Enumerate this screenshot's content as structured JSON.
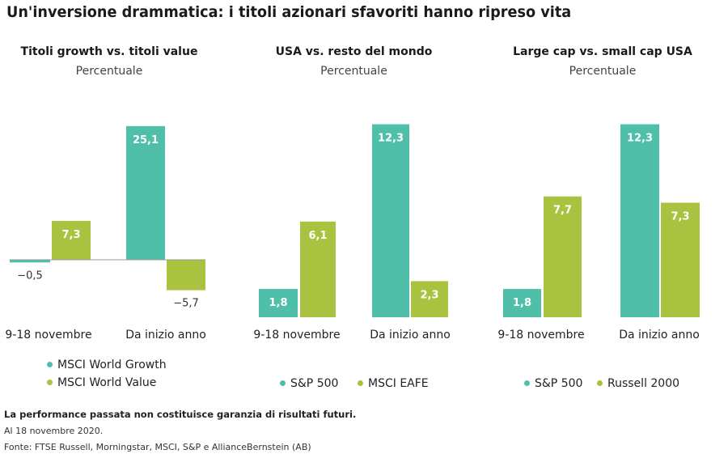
{
  "title": "Un'inversione drammatica: i titoli azionari sfavoriti hanno ripreso vita",
  "colors": {
    "teal": "#4fbfaa",
    "green": "#a9c23f",
    "axis": "#999999"
  },
  "chart_data": [
    {
      "type": "bar",
      "title": "Titoli growth vs. titoli value",
      "subtitle": "Percentuale",
      "categories": [
        "9-18 novembre",
        "Da inizio anno"
      ],
      "series": [
        {
          "name": "MSCI World Growth",
          "values": [
            -0.5,
            25.1
          ],
          "labels": [
            "−0,5",
            "25,1"
          ]
        },
        {
          "name": "MSCI World Value",
          "values": [
            7.3,
            -5.7
          ],
          "labels": [
            "7,3",
            "−5,7"
          ]
        }
      ],
      "ylim": [
        -8.5,
        27.5
      ],
      "legend": "bottom-stacked"
    },
    {
      "type": "bar",
      "title": "USA vs. resto del mondo",
      "subtitle": "Percentuale",
      "categories": [
        "9-18 novembre",
        "Da inizio anno"
      ],
      "series": [
        {
          "name": "S&P 500",
          "values": [
            1.8,
            12.3
          ],
          "labels": [
            "1,8",
            "12,3"
          ]
        },
        {
          "name": "MSCI EAFE",
          "values": [
            6.1,
            2.3
          ],
          "labels": [
            "6,1",
            "2,3"
          ]
        }
      ],
      "ylim": [
        0,
        13
      ],
      "legend": "bottom-inline"
    },
    {
      "type": "bar",
      "title": "Large cap vs. small cap USA",
      "subtitle": "Percentuale",
      "categories": [
        "9-18 novembre",
        "Da inizio anno"
      ],
      "series": [
        {
          "name": "S&P 500",
          "values": [
            1.8,
            12.3
          ],
          "labels": [
            "1,8",
            "12,3"
          ]
        },
        {
          "name": "Russell 2000",
          "values": [
            7.7,
            7.3
          ],
          "labels": [
            "7,7",
            "7,3"
          ]
        }
      ],
      "ylim": [
        0,
        13
      ],
      "legend": "bottom-inline"
    }
  ],
  "footer": {
    "note": "La performance passata non costituisce garanzia di risultati futuri.",
    "date": "Al 18 novembre 2020.",
    "source": "Fonte: FTSE Russell, Morningstar, MSCI, S&P e AllianceBernstein (AB)"
  }
}
